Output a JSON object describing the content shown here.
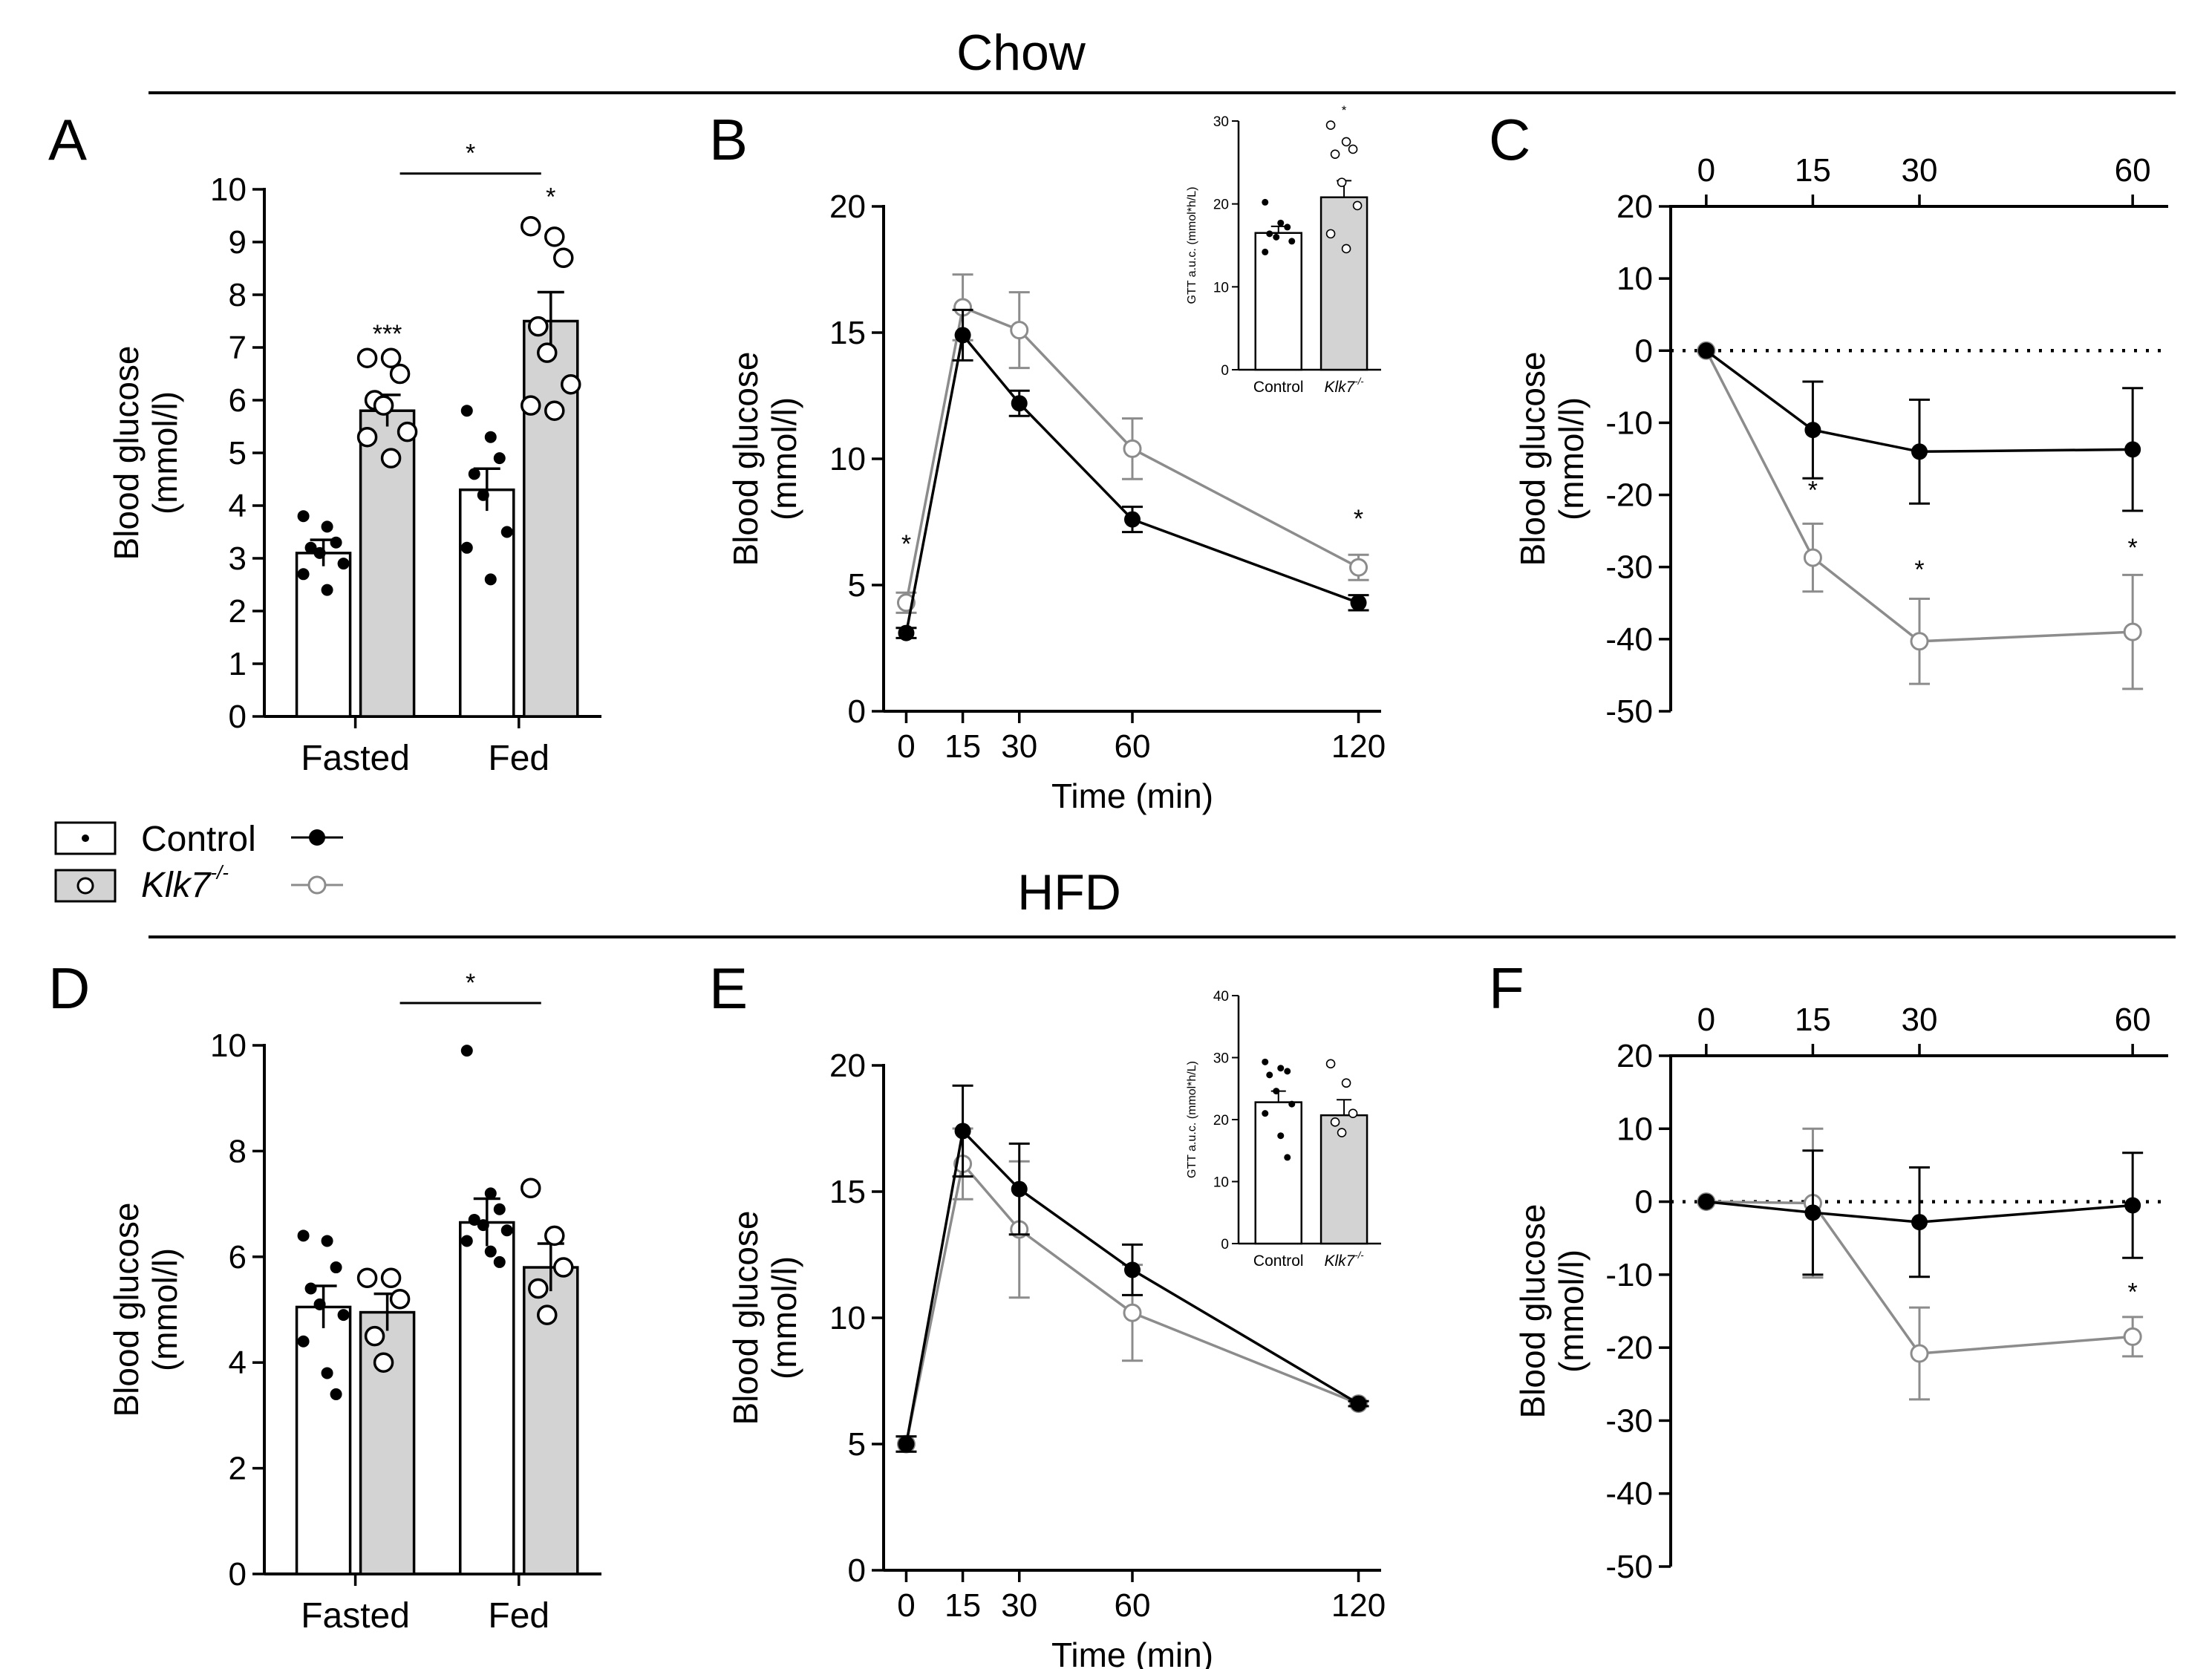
{
  "headers": {
    "top": "Chow",
    "bottom": "HFD"
  },
  "legend": {
    "control": "Control",
    "klk7": "Klk7",
    "klk7_sup": "-/-"
  },
  "colors": {
    "control_bar": "#ffffff",
    "klk7_bar": "#d3d3d3",
    "control_line": "#000000",
    "klk7_line": "#8c8c8c"
  },
  "chart_data": [
    {
      "id": "A",
      "label": "A",
      "type": "bar",
      "ylabel_1": "Blood glucose",
      "ylabel_2": "(mmol/l)",
      "ylim": [
        0,
        10
      ],
      "yticks": [
        0,
        1,
        2,
        3,
        4,
        5,
        6,
        7,
        8,
        9,
        10
      ],
      "ytick_labels": [
        "0",
        "1",
        "2",
        "3",
        "4",
        "5",
        "6",
        "7",
        "8",
        "9",
        "10"
      ],
      "categories": [
        "Fasted",
        "Fed"
      ],
      "series": [
        {
          "name": "Control",
          "values": [
            3.1,
            4.3
          ],
          "errors": [
            0.25,
            0.4
          ],
          "points": [
            [
              3.8,
              3.6,
              3.3,
              3.2,
              3.1,
              2.9,
              2.7,
              2.4
            ],
            [
              5.8,
              5.3,
              4.9,
              4.6,
              4.2,
              3.5,
              3.2,
              2.6
            ]
          ]
        },
        {
          "name": "Klk7-/-",
          "values": [
            5.8,
            7.5
          ],
          "errors": [
            0.3,
            0.55
          ],
          "points": [
            [
              6.8,
              6.8,
              6.5,
              6.0,
              5.9,
              5.4,
              5.3,
              4.9
            ],
            [
              9.3,
              9.1,
              8.7,
              7.4,
              6.9,
              6.3,
              5.9,
              5.8
            ]
          ]
        }
      ],
      "stars": [
        {
          "text": "***",
          "cat": 0,
          "series": 1,
          "y": 7.1
        },
        {
          "text": "*",
          "cat": 1,
          "series": 1,
          "y": 9.7
        }
      ],
      "bracket": {
        "text": "*",
        "x1": 0,
        "x2": 1,
        "y": 10.3
      }
    },
    {
      "id": "B",
      "label": "B",
      "type": "line",
      "ylabel_1": "Blood glucose",
      "ylabel_2": "(mmol/l)",
      "xlabel": "Time (min)",
      "ylim": [
        0,
        20
      ],
      "yticks": [
        0,
        5,
        10,
        15,
        20
      ],
      "ytick_labels": [
        "0",
        "5",
        "10",
        "15",
        "20"
      ],
      "xlim": [
        -6,
        126
      ],
      "xticks": [
        0,
        15,
        30,
        60,
        120
      ],
      "xtick_labels": [
        "0",
        "15",
        "30",
        "60",
        "120"
      ],
      "series": [
        {
          "name": "Control",
          "x": [
            0,
            15,
            30,
            60,
            120
          ],
          "y": [
            3.1,
            14.9,
            12.2,
            7.6,
            4.3
          ],
          "err": [
            0.2,
            1.0,
            0.5,
            0.5,
            0.3
          ]
        },
        {
          "name": "Klk7-/-",
          "x": [
            0,
            15,
            30,
            60,
            120
          ],
          "y": [
            4.3,
            16.0,
            15.1,
            10.4,
            5.7
          ],
          "err": [
            0.4,
            1.3,
            1.5,
            1.2,
            0.5
          ]
        }
      ],
      "stars": [
        {
          "text": "*",
          "x": 0,
          "y": 6.3
        },
        {
          "text": "*",
          "x": 120,
          "y": 7.3
        }
      ],
      "inset": {
        "ylabel": "GTT a.u.c. (mmol*h/L)",
        "ylim": [
          0,
          30
        ],
        "yticks": [
          0,
          10,
          20,
          30
        ],
        "ytick_labels": [
          "0",
          "10",
          "20",
          "30"
        ],
        "categories": [
          "Control",
          "Klk7"
        ],
        "cat_sup": "-/-",
        "values": [
          16.5,
          20.8
        ],
        "errors": [
          0.8,
          2.0
        ],
        "points": [
          [
            20.2,
            17.7,
            17.2,
            16.4,
            16.0,
            15.5,
            14.2
          ],
          [
            29.5,
            27.5,
            26.6,
            26.0,
            22.6,
            19.8,
            16.4,
            14.6
          ]
        ],
        "star": {
          "text": "*",
          "cat": 1,
          "y": 30.8
        }
      }
    },
    {
      "id": "C",
      "label": "C",
      "type": "line",
      "ylabel_1": "Blood glucose",
      "ylabel_2": "(mmol/l)",
      "ylim": [
        -50,
        20
      ],
      "yticks": [
        -50,
        -40,
        -30,
        -20,
        -10,
        0,
        10,
        20
      ],
      "ytick_labels": [
        "-50",
        "-40",
        "-30",
        "-20",
        "-10",
        "0",
        "10",
        "20"
      ],
      "xlim": [
        -5,
        65
      ],
      "xticks": [
        0,
        15,
        30,
        60
      ],
      "xtick_labels": [
        "0",
        "15",
        "30",
        "60"
      ],
      "series": [
        {
          "name": "Control",
          "x": [
            0,
            15,
            30,
            60
          ],
          "y": [
            0,
            -11,
            -14,
            -13.7
          ],
          "err": [
            0,
            6.7,
            7.2,
            8.5
          ]
        },
        {
          "name": "Klk7-/-",
          "x": [
            0,
            15,
            30,
            60
          ],
          "y": [
            0,
            -28.7,
            -40.3,
            -39
          ],
          "err": [
            0,
            4.7,
            5.9,
            7.9
          ]
        }
      ],
      "stars": [
        {
          "text": "*",
          "x": 15,
          "y": -20.5
        },
        {
          "text": "*",
          "x": 30,
          "y": -31.5
        },
        {
          "text": "*",
          "x": 60,
          "y": -28.5
        }
      ]
    },
    {
      "id": "D",
      "label": "D",
      "type": "bar",
      "ylabel_1": "Blood glucose",
      "ylabel_2": "(mmol/l)",
      "ylim": [
        0,
        10
      ],
      "yticks": [
        0,
        2,
        4,
        6,
        8,
        10
      ],
      "ytick_labels": [
        "0",
        "2",
        "4",
        "6",
        "8",
        "10"
      ],
      "categories": [
        "Fasted",
        "Fed"
      ],
      "series": [
        {
          "name": "Control",
          "values": [
            5.05,
            6.65
          ],
          "errors": [
            0.4,
            0.45
          ],
          "points": [
            [
              6.4,
              6.3,
              5.8,
              5.4,
              5.1,
              4.9,
              4.4,
              3.8,
              3.4
            ],
            [
              9.9,
              7.2,
              6.9,
              6.7,
              6.6,
              6.5,
              6.3,
              6.1,
              5.9
            ]
          ]
        },
        {
          "name": "Klk7-/-",
          "values": [
            4.95,
            5.8
          ],
          "errors": [
            0.35,
            0.45
          ],
          "points": [
            [
              5.6,
              5.6,
              5.2,
              4.5,
              4.0
            ],
            [
              7.3,
              6.4,
              5.8,
              5.4,
              4.9
            ]
          ]
        }
      ],
      "stars": [],
      "bracket": {
        "text": "*",
        "x1": 0,
        "x2": 1,
        "y": 10.8
      }
    },
    {
      "id": "E",
      "label": "E",
      "type": "line",
      "ylabel_1": "Blood glucose",
      "ylabel_2": "(mmol/l)",
      "xlabel": "Time (min)",
      "ylim": [
        0,
        20
      ],
      "yticks": [
        0,
        5,
        10,
        15,
        20
      ],
      "ytick_labels": [
        "0",
        "5",
        "10",
        "15",
        "20"
      ],
      "xlim": [
        -6,
        126
      ],
      "xticks": [
        0,
        15,
        30,
        60,
        120
      ],
      "xtick_labels": [
        "0",
        "15",
        "30",
        "60",
        "120"
      ],
      "series": [
        {
          "name": "Control",
          "x": [
            0,
            15,
            30,
            60,
            120
          ],
          "y": [
            5.0,
            17.4,
            15.1,
            11.9,
            6.6
          ],
          "err": [
            0.3,
            1.8,
            1.8,
            1.0,
            0.1
          ]
        },
        {
          "name": "Klk7-/-",
          "x": [
            0,
            15,
            30,
            60,
            120
          ],
          "y": [
            5.0,
            16.1,
            13.5,
            10.2,
            6.6
          ],
          "err": [
            0.3,
            1.4,
            2.7,
            1.9,
            0.1
          ]
        }
      ],
      "stars": [],
      "inset": {
        "ylabel": "GTT a.u.c. (mmol*h/L)",
        "ylim": [
          0,
          40
        ],
        "yticks": [
          0,
          10,
          20,
          30,
          40
        ],
        "ytick_labels": [
          "0",
          "10",
          "20",
          "30",
          "40"
        ],
        "categories": [
          "Control",
          "Klk7"
        ],
        "cat_sup": "-/-",
        "values": [
          22.8,
          20.7
        ],
        "errors": [
          1.8,
          2.5
        ],
        "points": [
          [
            29.3,
            28.3,
            27.8,
            27.2,
            24.6,
            22.5,
            21.0,
            17.4,
            13.9
          ],
          [
            29.0,
            25.9,
            21.0,
            19.6,
            17.9
          ]
        ],
        "star": null
      }
    },
    {
      "id": "F",
      "label": "F",
      "type": "line",
      "ylabel_1": "Blood glucose",
      "ylabel_2": "(mmol/l)",
      "ylim": [
        -50,
        20
      ],
      "yticks": [
        -50,
        -40,
        -30,
        -20,
        -10,
        0,
        10,
        20
      ],
      "ytick_labels": [
        "-50",
        "-40",
        "-30",
        "-20",
        "-10",
        "0",
        "10",
        "20"
      ],
      "xlim": [
        -5,
        65
      ],
      "xticks": [
        0,
        15,
        30,
        60
      ],
      "xtick_labels": [
        "0",
        "15",
        "30",
        "60"
      ],
      "series": [
        {
          "name": "Control",
          "x": [
            0,
            15,
            30,
            60
          ],
          "y": [
            0,
            -1.5,
            -2.8,
            -0.5
          ],
          "err": [
            0,
            8.5,
            7.5,
            7.2
          ]
        },
        {
          "name": "Klk7-/-",
          "x": [
            0,
            15,
            30,
            60
          ],
          "y": [
            0,
            -0.2,
            -20.8,
            -18.5
          ],
          "err": [
            0,
            10.2,
            6.3,
            2.7
          ]
        }
      ],
      "stars": [
        {
          "text": "*",
          "x": 60,
          "y": -13.5
        }
      ]
    }
  ]
}
